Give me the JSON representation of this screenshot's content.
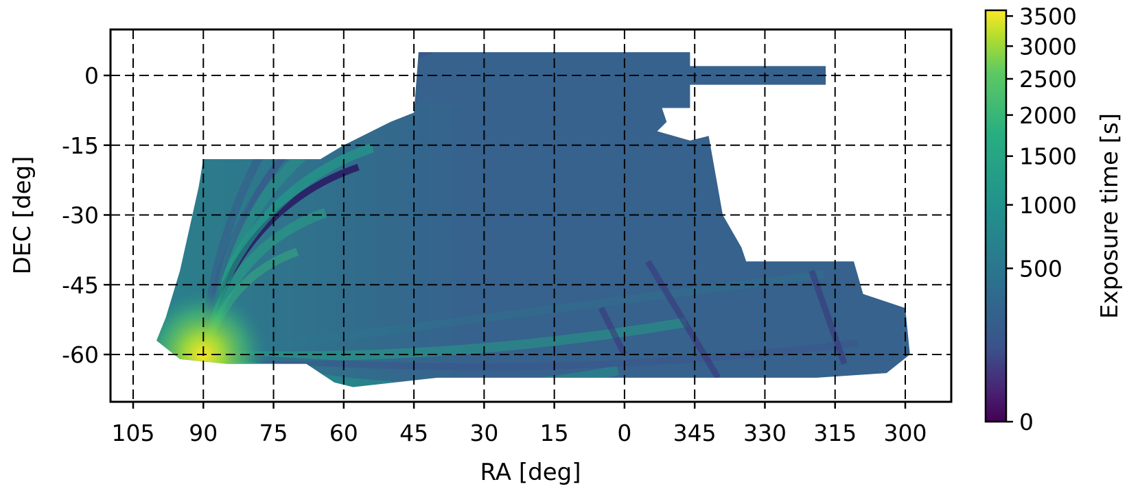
{
  "chart_data": {
    "type": "heatmap",
    "title": "",
    "xlabel": "RA [deg]",
    "ylabel": "DEC [deg]",
    "x_ticks": [
      105,
      90,
      75,
      60,
      45,
      30,
      15,
      0,
      345,
      330,
      315,
      300
    ],
    "x_tick_labels": [
      "105",
      "90",
      "75",
      "60",
      "45",
      "30",
      "15",
      "0",
      "345",
      "330",
      "315",
      "300"
    ],
    "x_direction": "decreasing RA to the right (wraps at 0/360)",
    "xlim": [
      110,
      290
    ],
    "y_ticks": [
      0,
      -15,
      -30,
      -45,
      -60
    ],
    "y_tick_labels": [
      "0",
      "-15",
      "-30",
      "-45",
      "-60"
    ],
    "ylim": [
      -70,
      10
    ],
    "grid": true,
    "grid_style": "dashed",
    "colorbar": {
      "label": "Exposure time [s]",
      "scale": "nonlinear (sqrt-like)",
      "range": [
        0,
        3600
      ],
      "ticks": [
        0,
        500,
        1000,
        1500,
        2000,
        2500,
        3000,
        3500
      ],
      "tick_labels": [
        "0",
        "500",
        "1000",
        "1500",
        "2000",
        "2500",
        "3000",
        "3500"
      ],
      "colormap": "viridis",
      "colors": [
        "#440154",
        "#3b528b",
        "#21918c",
        "#5ec962",
        "#fde725"
      ]
    },
    "footprint": [
      {
        "ra": 45,
        "dec_min": -10,
        "dec_max": 5,
        "exposure": 500
      },
      {
        "ra": 0,
        "dec_min": -7,
        "dec_max": 5,
        "exposure": 500
      },
      {
        "ra": 315,
        "dec_min": -2,
        "dec_max": 2,
        "exposure": 450
      },
      {
        "ra": 90,
        "dec_min": -62,
        "dec_max": -18,
        "exposure": 900
      },
      {
        "ra": 0,
        "dec_min": -65,
        "dec_max": -40,
        "exposure": 450
      },
      {
        "ra": 300,
        "dec_min": -60,
        "dec_max": -50,
        "exposure": 400
      }
    ],
    "peak": {
      "ra": 90,
      "dec": -60,
      "exposure": 3600
    }
  }
}
